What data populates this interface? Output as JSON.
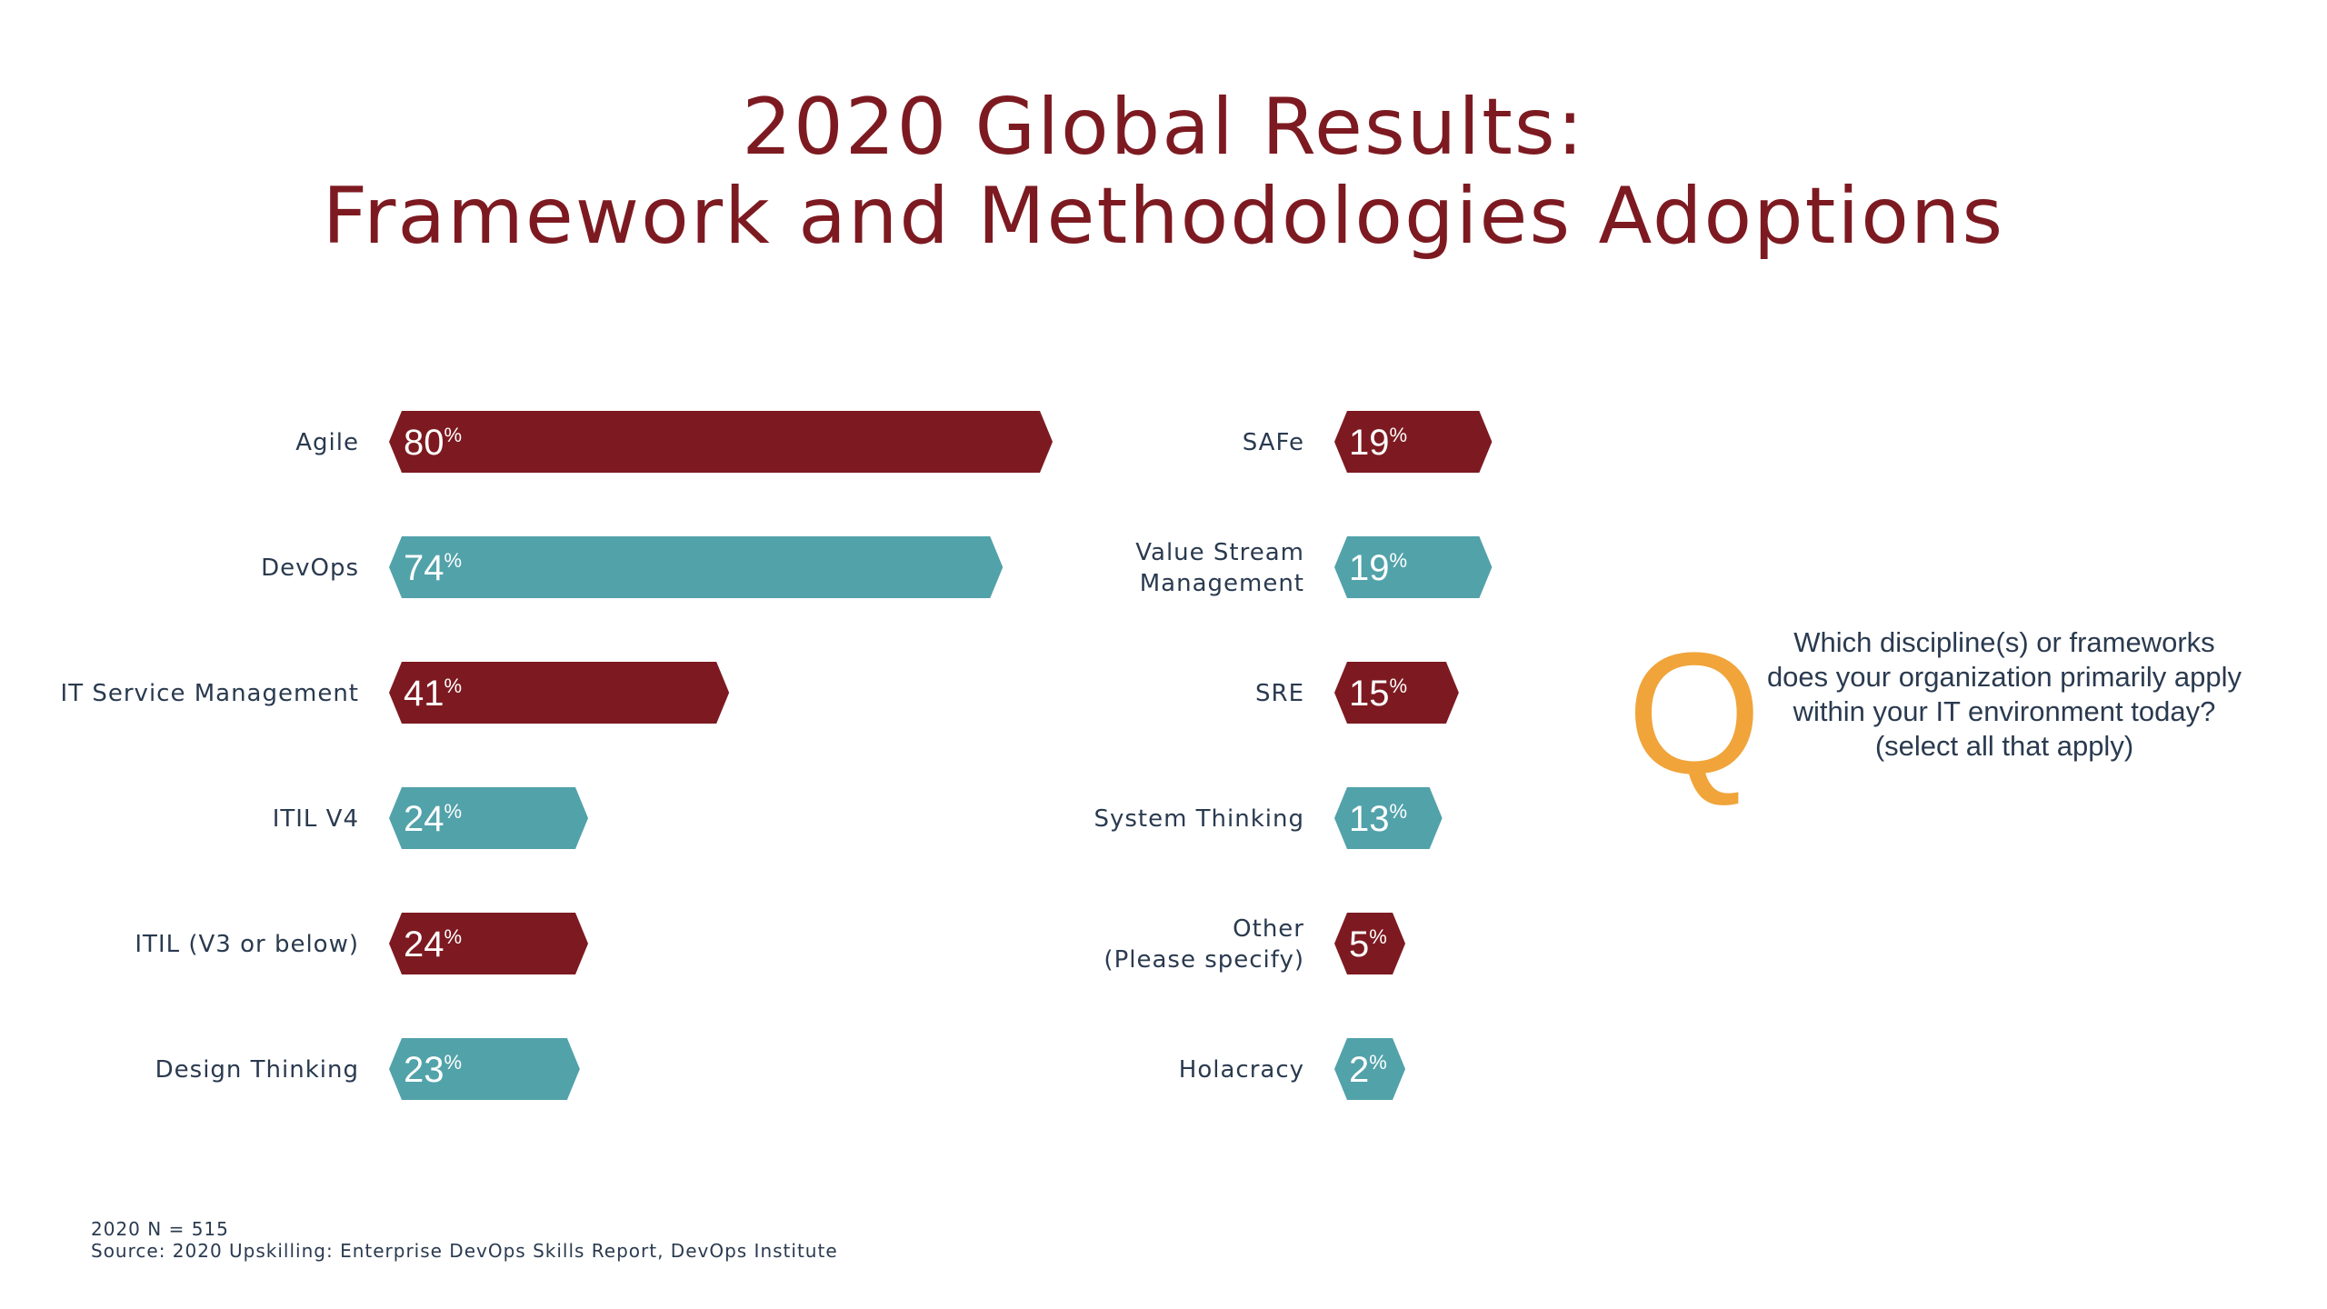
{
  "title": {
    "line1": "2020 Global Results:",
    "line2": "Framework and Methodologies Adoptions"
  },
  "colors": {
    "red": "#7d1a21",
    "teal": "#52a2aa",
    "accent": "#f0a43a",
    "text": "#2a3a4f"
  },
  "chart_data": {
    "type": "bar",
    "orientation": "horizontal",
    "unit": "%",
    "xlim": [
      0,
      80
    ],
    "grid": false,
    "groups": [
      {
        "categories": [
          [
            "Agile"
          ],
          [
            "DevOps"
          ],
          [
            "IT Service Management"
          ],
          [
            "ITIL V4"
          ],
          [
            "ITIL (V3 or below)"
          ],
          [
            "Design Thinking"
          ]
        ],
        "values": [
          80,
          74,
          41,
          24,
          24,
          23
        ],
        "colors": [
          "red",
          "teal",
          "red",
          "teal",
          "red",
          "teal"
        ]
      },
      {
        "categories": [
          [
            "SAFe"
          ],
          [
            "Value Stream",
            "Management"
          ],
          [
            "SRE"
          ],
          [
            "System Thinking"
          ],
          [
            "Other",
            "(Please specify)"
          ],
          [
            "Holacracy"
          ]
        ],
        "values": [
          19,
          19,
          15,
          13,
          5,
          2
        ],
        "colors": [
          "red",
          "teal",
          "red",
          "teal",
          "red",
          "teal"
        ]
      }
    ]
  },
  "question": {
    "icon": "q-letter-icon",
    "icon_glyph": "Q",
    "lines": [
      "Which discipline(s) or frameworks",
      "does your organization primarily apply",
      "within your IT environment today?",
      "(select all that apply)"
    ]
  },
  "footer": {
    "sample": "2020 N = 515",
    "source": "Source: 2020 Upskilling: Enterprise DevOps Skills Report, DevOps Institute"
  }
}
